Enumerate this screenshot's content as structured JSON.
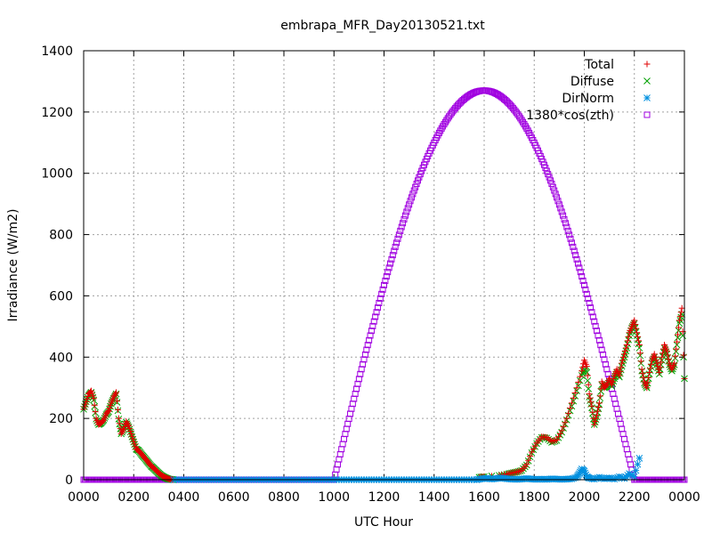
{
  "chart_data": {
    "type": "scatter",
    "title": "embrapa_MFR_Day20130521.txt",
    "xlabel": "UTC Hour",
    "ylabel": "Irradiance (W/m2)",
    "xlim": [
      0,
      24
    ],
    "ylim": [
      0,
      1400
    ],
    "grid": true,
    "legend_position": "top-right",
    "x_ticks": [
      {
        "value": 0,
        "label": "0000"
      },
      {
        "value": 2,
        "label": "0200"
      },
      {
        "value": 4,
        "label": "0400"
      },
      {
        "value": 6,
        "label": "0600"
      },
      {
        "value": 8,
        "label": "0800"
      },
      {
        "value": 10,
        "label": "1000"
      },
      {
        "value": 12,
        "label": "1200"
      },
      {
        "value": 14,
        "label": "1400"
      },
      {
        "value": 16,
        "label": "1600"
      },
      {
        "value": 18,
        "label": "1800"
      },
      {
        "value": 20,
        "label": "2000"
      },
      {
        "value": 22,
        "label": "2200"
      },
      {
        "value": 24,
        "label": "0000"
      }
    ],
    "y_ticks": [
      0,
      200,
      400,
      600,
      800,
      1000,
      1200,
      1400
    ],
    "series": [
      {
        "name": "Total",
        "marker": "plus",
        "color": "#e00000",
        "x": [
          0,
          0.1,
          0.2,
          0.3,
          0.4,
          0.5,
          0.6,
          0.7,
          0.8,
          0.9,
          1.0,
          1.1,
          1.2,
          1.3,
          1.4,
          1.5,
          1.6,
          1.7,
          1.8,
          1.9,
          2.0,
          2.1,
          2.2,
          2.3,
          2.4,
          2.5,
          2.6,
          2.7,
          2.8,
          2.9,
          3.0,
          3.1,
          3.2,
          3.3,
          3.4,
          3.5,
          3.6,
          15.8,
          16.0,
          16.3,
          16.6,
          16.9,
          17.1,
          17.3,
          17.5,
          17.7,
          17.9,
          18.1,
          18.3,
          18.5,
          18.7,
          18.9,
          19.1,
          19.3,
          19.5,
          19.7,
          19.9,
          20.0,
          20.1,
          20.2,
          20.3,
          20.4,
          20.5,
          20.6,
          20.7,
          20.8,
          20.9,
          21.0,
          21.1,
          21.2,
          21.3,
          21.4,
          21.5,
          21.6,
          21.7,
          21.8,
          21.9,
          22.0,
          22.1,
          22.2,
          22.3,
          22.4,
          22.5,
          22.6,
          22.7,
          22.8,
          22.9,
          23.0,
          23.1,
          23.2,
          23.3,
          23.4,
          23.5,
          23.6,
          23.7,
          23.8,
          23.9,
          24.0
        ],
        "y": [
          230,
          255,
          280,
          290,
          265,
          200,
          180,
          185,
          195,
          215,
          225,
          250,
          270,
          285,
          200,
          150,
          165,
          190,
          175,
          150,
          125,
          100,
          95,
          85,
          75,
          65,
          55,
          45,
          38,
          30,
          22,
          15,
          10,
          6,
          3,
          1,
          0,
          8,
          10,
          12,
          14,
          18,
          22,
          25,
          30,
          50,
          90,
          120,
          140,
          138,
          125,
          130,
          160,
          200,
          250,
          300,
          355,
          390,
          370,
          280,
          240,
          180,
          210,
          250,
          320,
          300,
          310,
          330,
          310,
          340,
          360,
          340,
          380,
          410,
          440,
          480,
          500,
          520,
          480,
          440,
          360,
          320,
          300,
          350,
          390,
          410,
          380,
          350,
          400,
          440,
          420,
          380,
          360,
          380,
          450,
          520,
          560,
          330
        ]
      },
      {
        "name": "Diffuse",
        "marker": "cross",
        "color": "#00a000",
        "x": [
          0,
          0.1,
          0.2,
          0.3,
          0.4,
          0.5,
          0.6,
          0.7,
          0.8,
          0.9,
          1.0,
          1.1,
          1.2,
          1.3,
          1.4,
          1.5,
          1.6,
          1.7,
          1.8,
          1.9,
          2.0,
          2.1,
          2.2,
          2.3,
          2.4,
          2.5,
          2.6,
          2.7,
          2.8,
          2.9,
          3.0,
          3.1,
          3.2,
          3.3,
          3.4,
          3.5,
          3.6,
          15.8,
          16.0,
          16.3,
          16.6,
          16.9,
          17.1,
          17.3,
          17.5,
          17.7,
          17.9,
          18.1,
          18.3,
          18.5,
          18.7,
          18.9,
          19.1,
          19.3,
          19.5,
          19.7,
          19.9,
          20.0,
          20.1,
          20.2,
          20.3,
          20.4,
          20.5,
          20.6,
          20.7,
          20.8,
          20.9,
          21.0,
          21.1,
          21.2,
          21.3,
          21.4,
          21.5,
          21.6,
          21.7,
          21.8,
          21.9,
          22.0,
          22.1,
          22.2,
          22.3,
          22.4,
          22.5,
          22.6,
          22.7,
          22.8,
          22.9,
          23.0,
          23.1,
          23.2,
          23.3,
          23.4,
          23.5,
          23.6,
          23.7,
          23.8,
          23.9,
          24.0
        ],
        "y": [
          230,
          255,
          275,
          285,
          260,
          198,
          180,
          185,
          195,
          212,
          222,
          248,
          265,
          280,
          198,
          150,
          165,
          188,
          172,
          148,
          123,
          100,
          95,
          84,
          74,
          64,
          54,
          44,
          37,
          29,
          21,
          14,
          9,
          5,
          2,
          1,
          0,
          8,
          10,
          12,
          14,
          18,
          22,
          25,
          30,
          48,
          88,
          118,
          138,
          136,
          122,
          128,
          155,
          195,
          240,
          290,
          340,
          360,
          350,
          270,
          235,
          180,
          205,
          245,
          310,
          300,
          305,
          320,
          305,
          330,
          350,
          335,
          370,
          400,
          430,
          470,
          495,
          510,
          470,
          430,
          355,
          315,
          300,
          345,
          380,
          400,
          375,
          345,
          390,
          430,
          410,
          375,
          355,
          375,
          440,
          510,
          540,
          330
        ]
      },
      {
        "name": "DirNorm",
        "marker": "star",
        "color": "#0090e0",
        "x": [
          15.7,
          15.9,
          16.1,
          16.3,
          16.5,
          16.7,
          16.9,
          17.1,
          17.3,
          17.5,
          17.7,
          17.9,
          18.1,
          18.3,
          18.5,
          18.7,
          18.9,
          19.1,
          19.3,
          19.5,
          19.7,
          19.8,
          19.9,
          20.0,
          20.1,
          20.2,
          20.4,
          20.6,
          20.8,
          21.0,
          21.2,
          21.4,
          21.6,
          21.8,
          22.0,
          22.2
        ],
        "y": [
          0,
          3,
          5,
          2,
          4,
          6,
          3,
          2,
          1,
          2,
          4,
          2,
          1,
          2,
          1,
          3,
          2,
          1,
          2,
          3,
          8,
          20,
          35,
          28,
          10,
          5,
          2,
          8,
          3,
          6,
          2,
          10,
          4,
          20,
          10,
          70
        ]
      },
      {
        "name": "1380*cos(zth)",
        "marker": "square",
        "color": "#a000e0",
        "formula": "1270*cos((h-16)/6*pi/2) for 10<=h<=22, else 0"
      }
    ]
  }
}
